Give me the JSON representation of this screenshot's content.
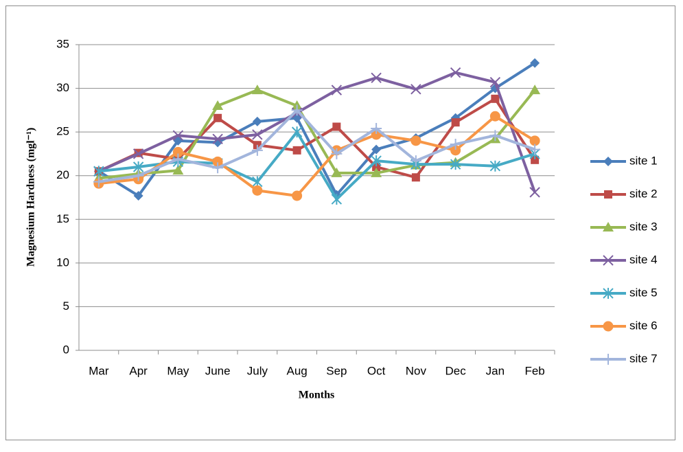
{
  "chart_data": {
    "type": "line",
    "y_label": "Magnesium Hardness (mgl⁻¹)",
    "x_label": "Months",
    "categories": [
      "Mar",
      "Apr",
      "May",
      "June",
      "July",
      "Aug",
      "Sep",
      "Oct",
      "Nov",
      "Dec",
      "Jan",
      "Feb"
    ],
    "ylim": [
      0,
      35
    ],
    "yticks": [
      0,
      5,
      10,
      15,
      20,
      25,
      30,
      35
    ],
    "grid": true,
    "legend": "right",
    "series": [
      {
        "name": "site 1",
        "color": "#4a7ebb",
        "marker": "diamond",
        "values": [
          20.5,
          17.7,
          24.0,
          23.8,
          26.2,
          26.6,
          17.8,
          23.0,
          24.3,
          26.6,
          30.0,
          32.9
        ]
      },
      {
        "name": "site 2",
        "color": "#be4b48",
        "marker": "square",
        "values": [
          20.5,
          22.6,
          21.9,
          26.6,
          23.5,
          22.9,
          25.6,
          21.0,
          19.8,
          26.1,
          28.8,
          21.8
        ]
      },
      {
        "name": "site 3",
        "color": "#98b954",
        "marker": "triangle",
        "values": [
          19.7,
          20.2,
          20.6,
          28.0,
          29.8,
          28.0,
          20.3,
          20.3,
          21.2,
          21.5,
          24.2,
          29.8
        ]
      },
      {
        "name": "site 4",
        "color": "#7d60a0",
        "marker": "x",
        "values": [
          20.5,
          22.5,
          24.6,
          24.2,
          24.7,
          27.2,
          29.8,
          31.2,
          29.9,
          31.8,
          30.7,
          18.1
        ]
      },
      {
        "name": "site 5",
        "color": "#46aac5",
        "marker": "star",
        "values": [
          20.5,
          21.0,
          21.6,
          21.4,
          19.3,
          25.0,
          17.3,
          21.7,
          21.3,
          21.3,
          21.1,
          22.5
        ]
      },
      {
        "name": "site 6",
        "color": "#f79646",
        "marker": "circle",
        "values": [
          19.1,
          19.6,
          22.7,
          21.6,
          18.3,
          17.7,
          22.9,
          24.7,
          24.0,
          22.9,
          26.8,
          24.0
        ]
      },
      {
        "name": "site 7",
        "color": "#a2b5dc",
        "marker": "plus",
        "values": [
          19.3,
          20.0,
          21.9,
          20.9,
          22.9,
          27.5,
          22.5,
          25.4,
          21.7,
          23.6,
          24.6,
          23.0
        ]
      }
    ]
  }
}
